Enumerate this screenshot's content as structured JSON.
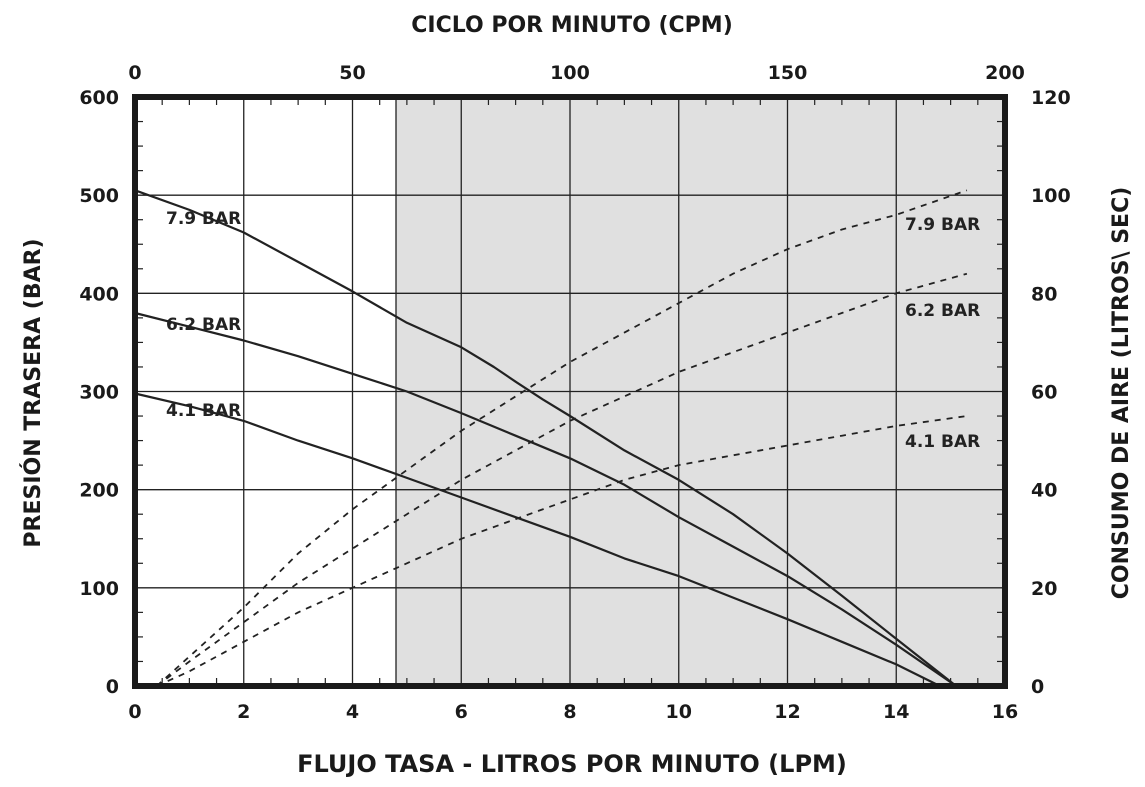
{
  "chart_data": {
    "type": "line",
    "title_top": "CICLO POR MINUTO (CPM)",
    "xlabel": "FLUJO TASA - LITROS POR MINUTO (LPM)",
    "ylabel_left": "PRESIÓN TRASERA (BAR)",
    "ylabel_right": "CONSUMO DE AIRE (LITROS\\ SEC)",
    "x_range": [
      0,
      16
    ],
    "x_ticks": [
      "0",
      "2",
      "4",
      "6",
      "8",
      "10",
      "12",
      "14",
      "16"
    ],
    "top_range": [
      0,
      200
    ],
    "top_ticks": [
      "0",
      "50",
      "100",
      "150",
      "200"
    ],
    "yleft_range": [
      0,
      600
    ],
    "yleft_ticks": [
      "0",
      "100",
      "200",
      "300",
      "400",
      "500",
      "600"
    ],
    "yright_range": [
      0,
      120
    ],
    "yright_ticks": [
      "0",
      "20",
      "40",
      "60",
      "80",
      "100",
      "120"
    ],
    "grid": true,
    "shaded_region_x": [
      4.8,
      16
    ],
    "colors": {
      "shade": "#e0e0e0",
      "line": "#222222",
      "frame": "#1a1a1a"
    },
    "series": [
      {
        "name": "7.9 BAR",
        "kind": "pressure",
        "axis": "left",
        "x": [
          0,
          1,
          2,
          3,
          4,
          5,
          6,
          6.6,
          7,
          7.5,
          8,
          9,
          10,
          11,
          12,
          13,
          14,
          15.1
        ],
        "y": [
          505,
          485,
          462,
          432,
          402,
          370,
          345,
          325,
          310,
          292,
          275,
          240,
          210,
          175,
          135,
          92,
          48,
          0
        ]
      },
      {
        "name": "6.2 BAR",
        "kind": "pressure",
        "axis": "left",
        "x": [
          0,
          1,
          2,
          3,
          4,
          5,
          6,
          7,
          8,
          9,
          10,
          11,
          12,
          13,
          14,
          15.1
        ],
        "y": [
          380,
          366,
          352,
          336,
          318,
          300,
          278,
          255,
          232,
          205,
          172,
          142,
          112,
          78,
          42,
          0
        ]
      },
      {
        "name": "4.1 BAR",
        "kind": "pressure",
        "axis": "left",
        "x": [
          0,
          1,
          2,
          3,
          4,
          5,
          6,
          7,
          8,
          9,
          10,
          11,
          12,
          13,
          14,
          14.8
        ],
        "y": [
          298,
          285,
          270,
          250,
          232,
          212,
          192,
          172,
          152,
          130,
          112,
          90,
          68,
          45,
          22,
          0
        ]
      },
      {
        "name": "7.9 BAR",
        "kind": "air",
        "axis": "right",
        "x": [
          0.4,
          1,
          2,
          3,
          4,
          5,
          6,
          7,
          8,
          9,
          10,
          11,
          12,
          13,
          14,
          15.3
        ],
        "y": [
          0,
          6,
          16,
          27,
          36,
          44,
          52,
          59,
          66,
          72,
          78,
          84,
          89,
          93,
          96,
          101
        ]
      },
      {
        "name": "6.2 BAR",
        "kind": "air",
        "axis": "right",
        "x": [
          0.4,
          1,
          2,
          3,
          4,
          5,
          6,
          7,
          8,
          9,
          10,
          11,
          12,
          13,
          14,
          15.3
        ],
        "y": [
          0,
          5,
          13,
          21,
          28,
          35,
          42,
          48,
          54,
          59,
          64,
          68,
          72,
          76,
          80,
          84
        ]
      },
      {
        "name": "4.1 BAR",
        "kind": "air",
        "axis": "right",
        "x": [
          0.4,
          1,
          2,
          3,
          4,
          5,
          6,
          7,
          8,
          9,
          10,
          11,
          12,
          13,
          14,
          15.3
        ],
        "y": [
          0,
          3,
          9,
          15,
          20,
          25,
          30,
          34,
          38,
          42,
          45,
          47,
          49,
          51,
          53,
          55
        ]
      }
    ],
    "annotations": {
      "pressure_labels": [
        "7.9 BAR",
        "6.2 BAR",
        "4.1 BAR"
      ],
      "air_labels": [
        "7.9 BAR",
        "6.2 BAR",
        "4.1 BAR"
      ]
    }
  }
}
